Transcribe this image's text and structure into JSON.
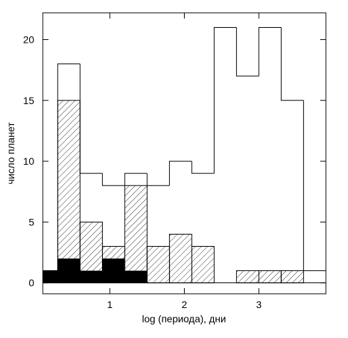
{
  "chart_data": {
    "type": "histogram",
    "xlabel": "log (периода), дни",
    "ylabel": "число планет",
    "bins": [
      0.0,
      0.3,
      0.6,
      0.9,
      1.2,
      1.5,
      1.8,
      2.1,
      2.4,
      2.7,
      3.0,
      3.3,
      3.6,
      3.9
    ],
    "series": [
      {
        "style": "outline",
        "color": "#000000",
        "values": [
          1,
          18,
          9,
          8,
          9,
          8,
          10,
          9,
          21,
          17,
          21,
          15,
          1
        ]
      },
      {
        "style": "hatch",
        "color": "#000000",
        "values": [
          1,
          15,
          5,
          3,
          8,
          3,
          4,
          3,
          0,
          1,
          1,
          1,
          0
        ]
      },
      {
        "style": "solid",
        "color": "#000000",
        "values": [
          1,
          2,
          1,
          2,
          1,
          0,
          0,
          0,
          0,
          0,
          0,
          0,
          0
        ]
      }
    ],
    "xlim": [
      0.1,
      3.9
    ],
    "ylim": [
      -0.9,
      22.2
    ],
    "xticks": [
      1,
      2,
      3
    ],
    "yticks": [
      0,
      5,
      10,
      15,
      20
    ]
  }
}
